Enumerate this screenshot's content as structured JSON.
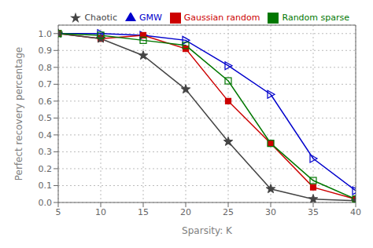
{
  "chart_data": {
    "type": "line",
    "x": [
      5,
      10,
      15,
      20,
      25,
      30,
      35,
      40
    ],
    "series": [
      {
        "name": "GMW",
        "color": "#0000cc",
        "marker": "triangle-right-open",
        "values": [
          1.0,
          1.0,
          0.99,
          0.96,
          0.81,
          0.64,
          0.26,
          0.07
        ]
      },
      {
        "name": "Gaussian random",
        "color": "#cc0000",
        "marker": "square",
        "values": [
          1.0,
          0.97,
          0.99,
          0.91,
          0.6,
          0.35,
          0.09,
          0.02
        ]
      },
      {
        "name": "Chaotic",
        "color": "#444444",
        "marker": "star",
        "values": [
          1.0,
          0.97,
          0.87,
          0.67,
          0.36,
          0.08,
          0.02,
          0.01
        ]
      },
      {
        "name": "Random sparse",
        "color": "#007700",
        "marker": "square-open",
        "values": [
          1.0,
          0.99,
          0.96,
          0.93,
          0.72,
          0.35,
          0.13,
          0.02
        ]
      }
    ],
    "xlabel": "Sparsity: K",
    "ylabel": "Perfect recovery percentage",
    "xlim": [
      5,
      40
    ],
    "ylim": [
      0,
      1.05
    ],
    "xticks": [
      5,
      10,
      15,
      20,
      25,
      30,
      35,
      40
    ],
    "yticks": [
      {
        "value": 0,
        "label": "0.0"
      },
      0.1,
      0.2,
      0.3,
      0.4,
      0.5,
      0.6,
      0.7,
      0.8,
      0.9,
      {
        "value": 1,
        "label": "1.0"
      }
    ],
    "grid": true,
    "legend": "upper right"
  }
}
